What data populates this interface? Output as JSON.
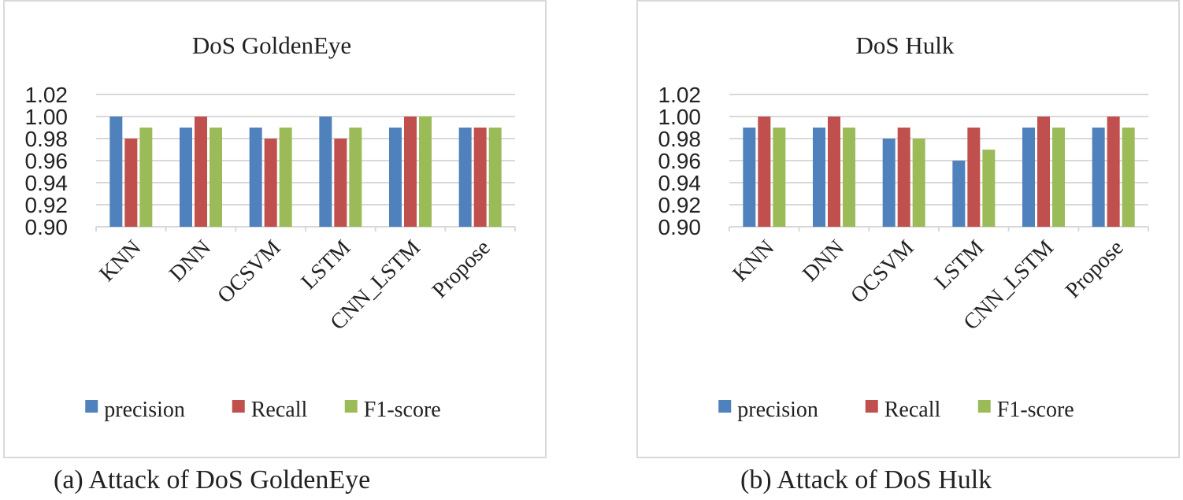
{
  "chart_data": [
    {
      "type": "bar",
      "title": "DoS GoldenEye",
      "categories": [
        "KNN",
        "DNN",
        "OCSVM",
        "LSTM",
        "CNN_LSTM",
        "Propose"
      ],
      "series": [
        {
          "name": "precision",
          "color": "#4F81BD",
          "values": [
            1.0,
            0.99,
            0.99,
            1.0,
            0.99,
            0.99
          ]
        },
        {
          "name": "Recall",
          "color": "#C0504D",
          "values": [
            0.98,
            1.0,
            0.98,
            0.98,
            1.0,
            0.99
          ]
        },
        {
          "name": "F1-score",
          "color": "#9BBB59",
          "values": [
            0.99,
            0.99,
            0.99,
            0.99,
            1.0,
            0.99
          ]
        }
      ],
      "ylim": [
        0.9,
        1.02
      ],
      "yticks": [
        "0.90",
        "0.92",
        "0.94",
        "0.96",
        "0.98",
        "1.00",
        "1.02"
      ],
      "grid": true,
      "legend": "bottom",
      "xlabel": "",
      "ylabel": ""
    },
    {
      "type": "bar",
      "title": "DoS Hulk",
      "categories": [
        "KNN",
        "DNN",
        "OCSVM",
        "LSTM",
        "CNN_LSTM",
        "Propose"
      ],
      "series": [
        {
          "name": "precision",
          "color": "#4F81BD",
          "values": [
            0.99,
            0.99,
            0.98,
            0.96,
            0.99,
            0.99
          ]
        },
        {
          "name": "Recall",
          "color": "#C0504D",
          "values": [
            1.0,
            1.0,
            0.99,
            0.99,
            1.0,
            1.0
          ]
        },
        {
          "name": "F1-score",
          "color": "#9BBB59",
          "values": [
            0.99,
            0.99,
            0.98,
            0.97,
            0.99,
            0.99
          ]
        }
      ],
      "ylim": [
        0.9,
        1.02
      ],
      "yticks": [
        "0.90",
        "0.92",
        "0.94",
        "0.96",
        "0.98",
        "1.00",
        "1.02"
      ],
      "grid": true,
      "legend": "bottom",
      "xlabel": "",
      "ylabel": ""
    }
  ],
  "captions": {
    "a": "(a) Attack of DoS GoldenEye",
    "b": "(b) Attack of DoS Hulk"
  }
}
